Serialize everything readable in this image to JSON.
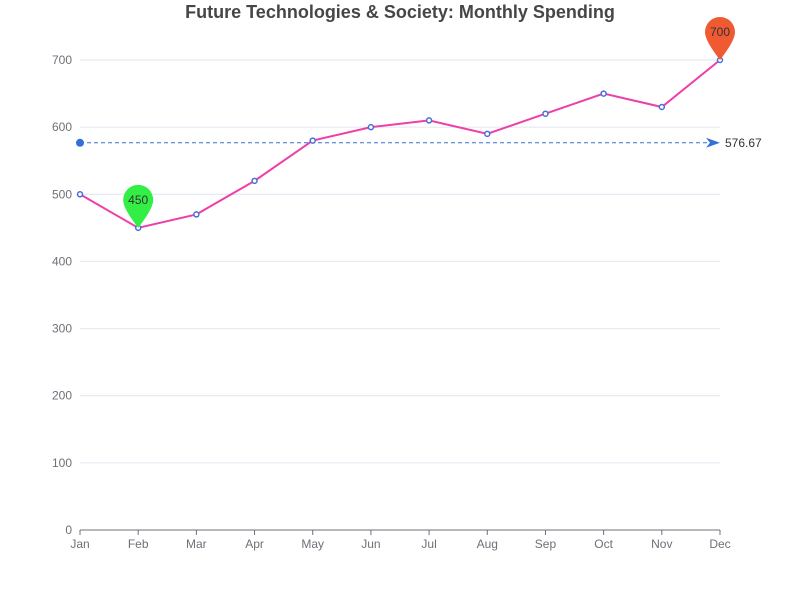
{
  "chart_data": {
    "type": "line",
    "title": "Future Technologies & Society: Monthly Spending",
    "xlabel": "",
    "ylabel": "",
    "categories": [
      "Jan",
      "Feb",
      "Mar",
      "Apr",
      "May",
      "Jun",
      "Jul",
      "Aug",
      "Sep",
      "Oct",
      "Nov",
      "Dec"
    ],
    "series": [
      {
        "values": [
          500,
          450,
          470,
          520,
          580,
          600,
          610,
          590,
          620,
          650,
          630,
          700
        ]
      }
    ],
    "ylim": [
      0,
      700
    ],
    "yticks": [
      0,
      100,
      200,
      300,
      400,
      500,
      600,
      700
    ],
    "grid": true,
    "mark_points": [
      {
        "type": "min",
        "category": "Feb",
        "value": 450,
        "label": "450",
        "color": "#33ee44"
      },
      {
        "type": "max",
        "category": "Dec",
        "value": 700,
        "label": "700",
        "color": "#f05a32"
      }
    ],
    "mark_line": {
      "type": "average",
      "value": 576.67,
      "label": "576.67",
      "color": "#3370d8"
    },
    "colors": {
      "line": "#ee3fa8",
      "point": "#4a6fd8",
      "axis": "#6e7079",
      "grid": "#e0e6f1",
      "label": "#6e7079"
    }
  }
}
